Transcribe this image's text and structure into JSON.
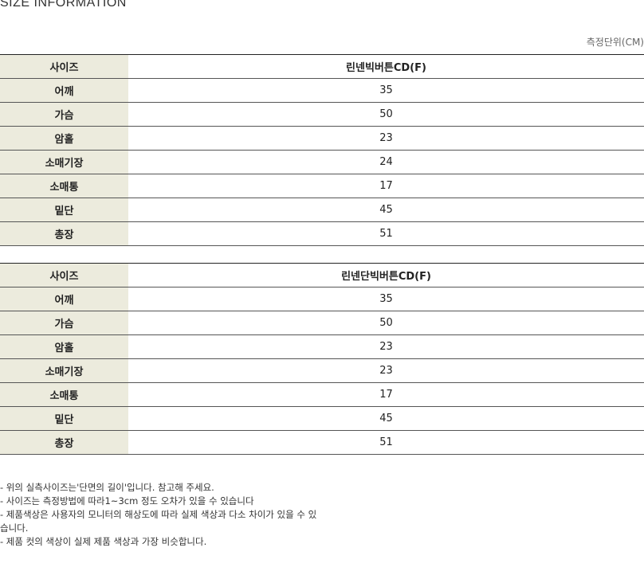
{
  "title": "SIZE INFORMATION",
  "unit": "측정단위(CM)",
  "tables": [
    {
      "header": {
        "label": "사이즈",
        "name": "린넨빅버튼CD(F)"
      },
      "rows": [
        {
          "label": "어깨",
          "value": "35"
        },
        {
          "label": "가슴",
          "value": "50"
        },
        {
          "label": "암홀",
          "value": "23"
        },
        {
          "label": "소매기장",
          "value": "24"
        },
        {
          "label": "소매통",
          "value": "17"
        },
        {
          "label": "밑단",
          "value": "45"
        },
        {
          "label": "총장",
          "value": "51"
        }
      ]
    },
    {
      "header": {
        "label": "사이즈",
        "name": "린넨단빅버튼CD(F)"
      },
      "rows": [
        {
          "label": "어깨",
          "value": "35"
        },
        {
          "label": "가슴",
          "value": "50"
        },
        {
          "label": "암홀",
          "value": "23"
        },
        {
          "label": "소매기장",
          "value": "23"
        },
        {
          "label": "소매통",
          "value": "17"
        },
        {
          "label": "밑단",
          "value": "45"
        },
        {
          "label": "총장",
          "value": "51"
        }
      ]
    }
  ],
  "notes": [
    "- 위의 실측사이즈는'단면의 길이'입니다. 참고해 주세요.",
    "- 사이즈는 측정방법에 따라1~3cm 정도 오차가 있을 수 있습니다",
    "- 제품색상은 사용자의 모니터의 해상도에 따라 실제 색상과 다소 차이가 있을 수 있습니다.",
    "- 제품 컷의 색상이 실제 제품 색상과 가장 비슷합니다."
  ]
}
